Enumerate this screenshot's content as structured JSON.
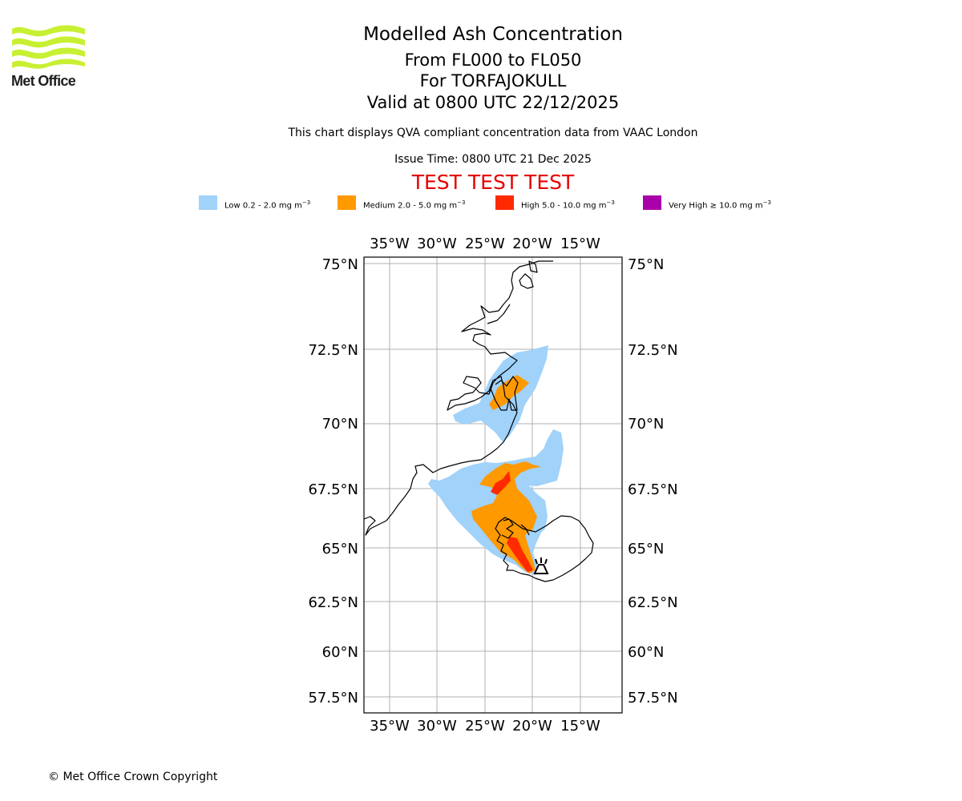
{
  "logo": {
    "text": "Met Office",
    "color": "#c8f032"
  },
  "header": {
    "title": "Modelled Ash Concentration",
    "levels": "From FL000 to FL050",
    "volcano": "For TORFAJOKULL",
    "valid": "Valid at 0800 UTC 22/12/2025",
    "description": "This chart displays QVA compliant concentration data from VAAC London",
    "issue_time": "Issue Time: 0800 UTC 21 Dec 2025",
    "test_banner": "TEST TEST TEST"
  },
  "legend": [
    {
      "label": "Low 0.2 - 2.0 mg m",
      "unit_exp": "−3",
      "color": "#a0d2fa"
    },
    {
      "label": "Medium 2.0 - 5.0 mg m",
      "unit_exp": "−3",
      "color": "#ff9900"
    },
    {
      "label": "High 5.0 - 10.0 mg m",
      "unit_exp": "−3",
      "color": "#ff2a00"
    },
    {
      "label": "Very High ≥ 10.0 mg m",
      "unit_exp": "−3",
      "color": "#aa00aa"
    }
  ],
  "map": {
    "lon_ticks": [
      "35°W",
      "30°W",
      "25°W",
      "20°W",
      "15°W"
    ],
    "lat_ticks": [
      "75°N",
      "72.5°N",
      "70°N",
      "67.5°N",
      "65°N",
      "62.5°N",
      "60°N",
      "57.5°N"
    ],
    "grid_color": "#b0b0b0",
    "coast_color": "#000000"
  },
  "footer": {
    "copyright": "© Met Office Crown Copyright"
  }
}
